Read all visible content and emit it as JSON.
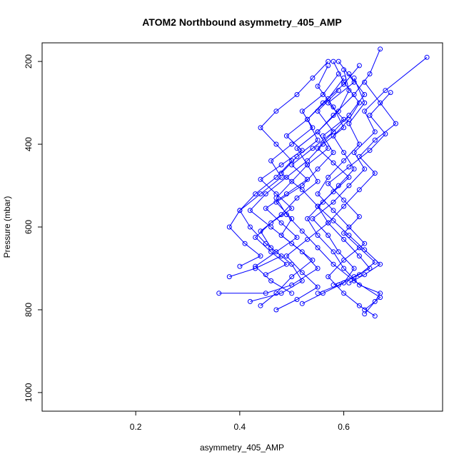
{
  "chart_data": {
    "type": "line",
    "title": "ATOM2 Northbound asymmetry_405_AMP",
    "xlabel": "asymmetry_405_AMP",
    "ylabel": "Pressure (mbar)",
    "xlim": [
      0.02,
      0.79
    ],
    "ylim": [
      1045,
      155
    ],
    "y_reversed": true,
    "xticks": [
      0.2,
      0.4,
      0.6
    ],
    "xtick_labels": [
      "0.2",
      "0.4",
      "0.6"
    ],
    "yticks": [
      200,
      400,
      600,
      800,
      1000
    ],
    "ytick_labels": [
      "200",
      "400",
      "600",
      "800",
      "1000"
    ],
    "grid": false,
    "legend": "none",
    "marker": "open-circle",
    "color": "#0000ff",
    "series": [
      {
        "x": [
          0.64,
          0.66,
          0.67,
          0.63,
          0.6,
          0.58,
          0.55,
          0.53,
          0.56,
          0.59,
          0.62,
          0.6,
          0.58,
          0.61,
          0.63,
          0.6,
          0.58
        ],
        "y": [
          810,
          780,
          760,
          740,
          700,
          660,
          620,
          580,
          540,
          500,
          460,
          420,
          380,
          340,
          300,
          250,
          200
        ]
      },
      {
        "x": [
          0.36,
          0.45,
          0.5,
          0.55,
          0.52,
          0.48,
          0.5,
          0.47,
          0.52,
          0.55,
          0.58,
          0.56,
          0.6,
          0.57,
          0.62,
          0.59
        ],
        "y": [
          760,
          760,
          740,
          700,
          660,
          620,
          580,
          540,
          500,
          460,
          420,
          380,
          340,
          300,
          250,
          200
        ]
      },
      {
        "x": [
          0.42,
          0.48,
          0.52,
          0.5,
          0.46,
          0.44,
          0.48,
          0.51,
          0.55,
          0.53,
          0.57,
          0.55,
          0.59,
          0.61,
          0.6
        ],
        "y": [
          780,
          760,
          730,
          690,
          650,
          610,
          570,
          530,
          490,
          450,
          410,
          370,
          320,
          270,
          220
        ]
      },
      {
        "x": [
          0.52,
          0.56,
          0.6,
          0.62,
          0.59,
          0.57,
          0.54,
          0.58,
          0.61,
          0.64,
          0.62,
          0.66,
          0.64,
          0.68,
          0.76
        ],
        "y": [
          785,
          760,
          735,
          700,
          660,
          620,
          580,
          540,
          500,
          460,
          420,
          370,
          320,
          270,
          190
        ]
      },
      {
        "x": [
          0.64,
          0.67,
          0.62,
          0.58,
          0.55,
          0.52,
          0.49,
          0.47,
          0.5,
          0.53,
          0.51,
          0.55,
          0.58,
          0.62,
          0.65,
          0.67
        ],
        "y": [
          800,
          770,
          730,
          690,
          650,
          610,
          570,
          530,
          490,
          450,
          410,
          370,
          330,
          280,
          230,
          170
        ]
      },
      {
        "x": [
          0.44,
          0.47,
          0.5,
          0.54,
          0.5,
          0.46,
          0.42,
          0.45,
          0.49,
          0.53,
          0.56,
          0.6,
          0.58,
          0.55,
          0.57
        ],
        "y": [
          790,
          760,
          720,
          680,
          640,
          600,
          560,
          520,
          480,
          440,
          400,
          360,
          310,
          260,
          210
        ]
      },
      {
        "x": [
          0.66,
          0.63,
          0.6,
          0.57,
          0.6,
          0.64,
          0.61,
          0.58,
          0.55,
          0.57,
          0.6,
          0.63,
          0.61,
          0.64,
          0.62
        ],
        "y": [
          815,
          790,
          760,
          720,
          680,
          640,
          600,
          560,
          520,
          480,
          440,
          400,
          350,
          300,
          240
        ]
      },
      {
        "x": [
          0.38,
          0.43,
          0.48,
          0.45,
          0.42,
          0.4,
          0.44,
          0.48,
          0.46,
          0.5,
          0.54,
          0.52,
          0.56,
          0.59
        ],
        "y": [
          720,
          700,
          670,
          640,
          600,
          560,
          520,
          480,
          440,
          400,
          360,
          320,
          280,
          230
        ]
      },
      {
        "x": [
          0.58,
          0.62,
          0.65,
          0.63,
          0.6,
          0.57,
          0.6,
          0.63,
          0.66,
          0.63,
          0.66,
          0.7,
          0.67,
          0.64
        ],
        "y": [
          740,
          720,
          700,
          670,
          630,
          590,
          550,
          510,
          470,
          430,
          390,
          350,
          300,
          250
        ]
      },
      {
        "x": [
          0.47,
          0.51,
          0.55,
          0.52,
          0.49,
          0.53,
          0.57,
          0.55,
          0.52,
          0.48,
          0.51,
          0.55,
          0.53,
          0.57,
          0.6
        ],
        "y": [
          800,
          775,
          745,
          710,
          670,
          630,
          590,
          550,
          510,
          470,
          430,
          390,
          340,
          290,
          240
        ]
      },
      {
        "x": [
          0.4,
          0.44,
          0.41,
          0.38,
          0.4,
          0.43,
          0.47,
          0.5,
          0.47,
          0.44,
          0.47,
          0.51,
          0.54,
          0.57
        ],
        "y": [
          695,
          670,
          640,
          600,
          560,
          520,
          480,
          440,
          400,
          360,
          320,
          280,
          240,
          200
        ]
      },
      {
        "x": [
          0.61,
          0.64,
          0.67,
          0.64,
          0.61,
          0.58,
          0.55,
          0.58,
          0.61,
          0.58,
          0.55,
          0.58,
          0.61,
          0.64,
          0.61
        ],
        "y": [
          735,
          715,
          690,
          655,
          620,
          585,
          550,
          515,
          480,
          445,
          410,
          370,
          330,
          280,
          230
        ]
      },
      {
        "x": [
          0.5,
          0.46,
          0.43,
          0.47,
          0.51,
          0.48,
          0.45,
          0.49,
          0.53,
          0.5,
          0.54,
          0.58,
          0.55,
          0.59
        ],
        "y": [
          760,
          730,
          695,
          660,
          625,
          590,
          555,
          520,
          485,
          450,
          410,
          370,
          320,
          270
        ]
      },
      {
        "x": [
          0.55,
          0.59,
          0.63,
          0.66,
          0.63,
          0.6,
          0.63,
          0.6,
          0.57,
          0.61,
          0.65,
          0.68,
          0.65,
          0.69
        ],
        "y": [
          760,
          740,
          715,
          685,
          650,
          615,
          575,
          535,
          495,
          455,
          415,
          375,
          330,
          275
        ]
      },
      {
        "x": [
          0.45,
          0.49,
          0.46,
          0.43,
          0.46,
          0.5,
          0.47,
          0.44,
          0.48,
          0.52,
          0.49,
          0.53,
          0.56,
          0.6,
          0.63
        ],
        "y": [
          715,
          690,
          660,
          625,
          590,
          555,
          520,
          485,
          450,
          415,
          380,
          340,
          300,
          255,
          210
        ]
      }
    ]
  }
}
